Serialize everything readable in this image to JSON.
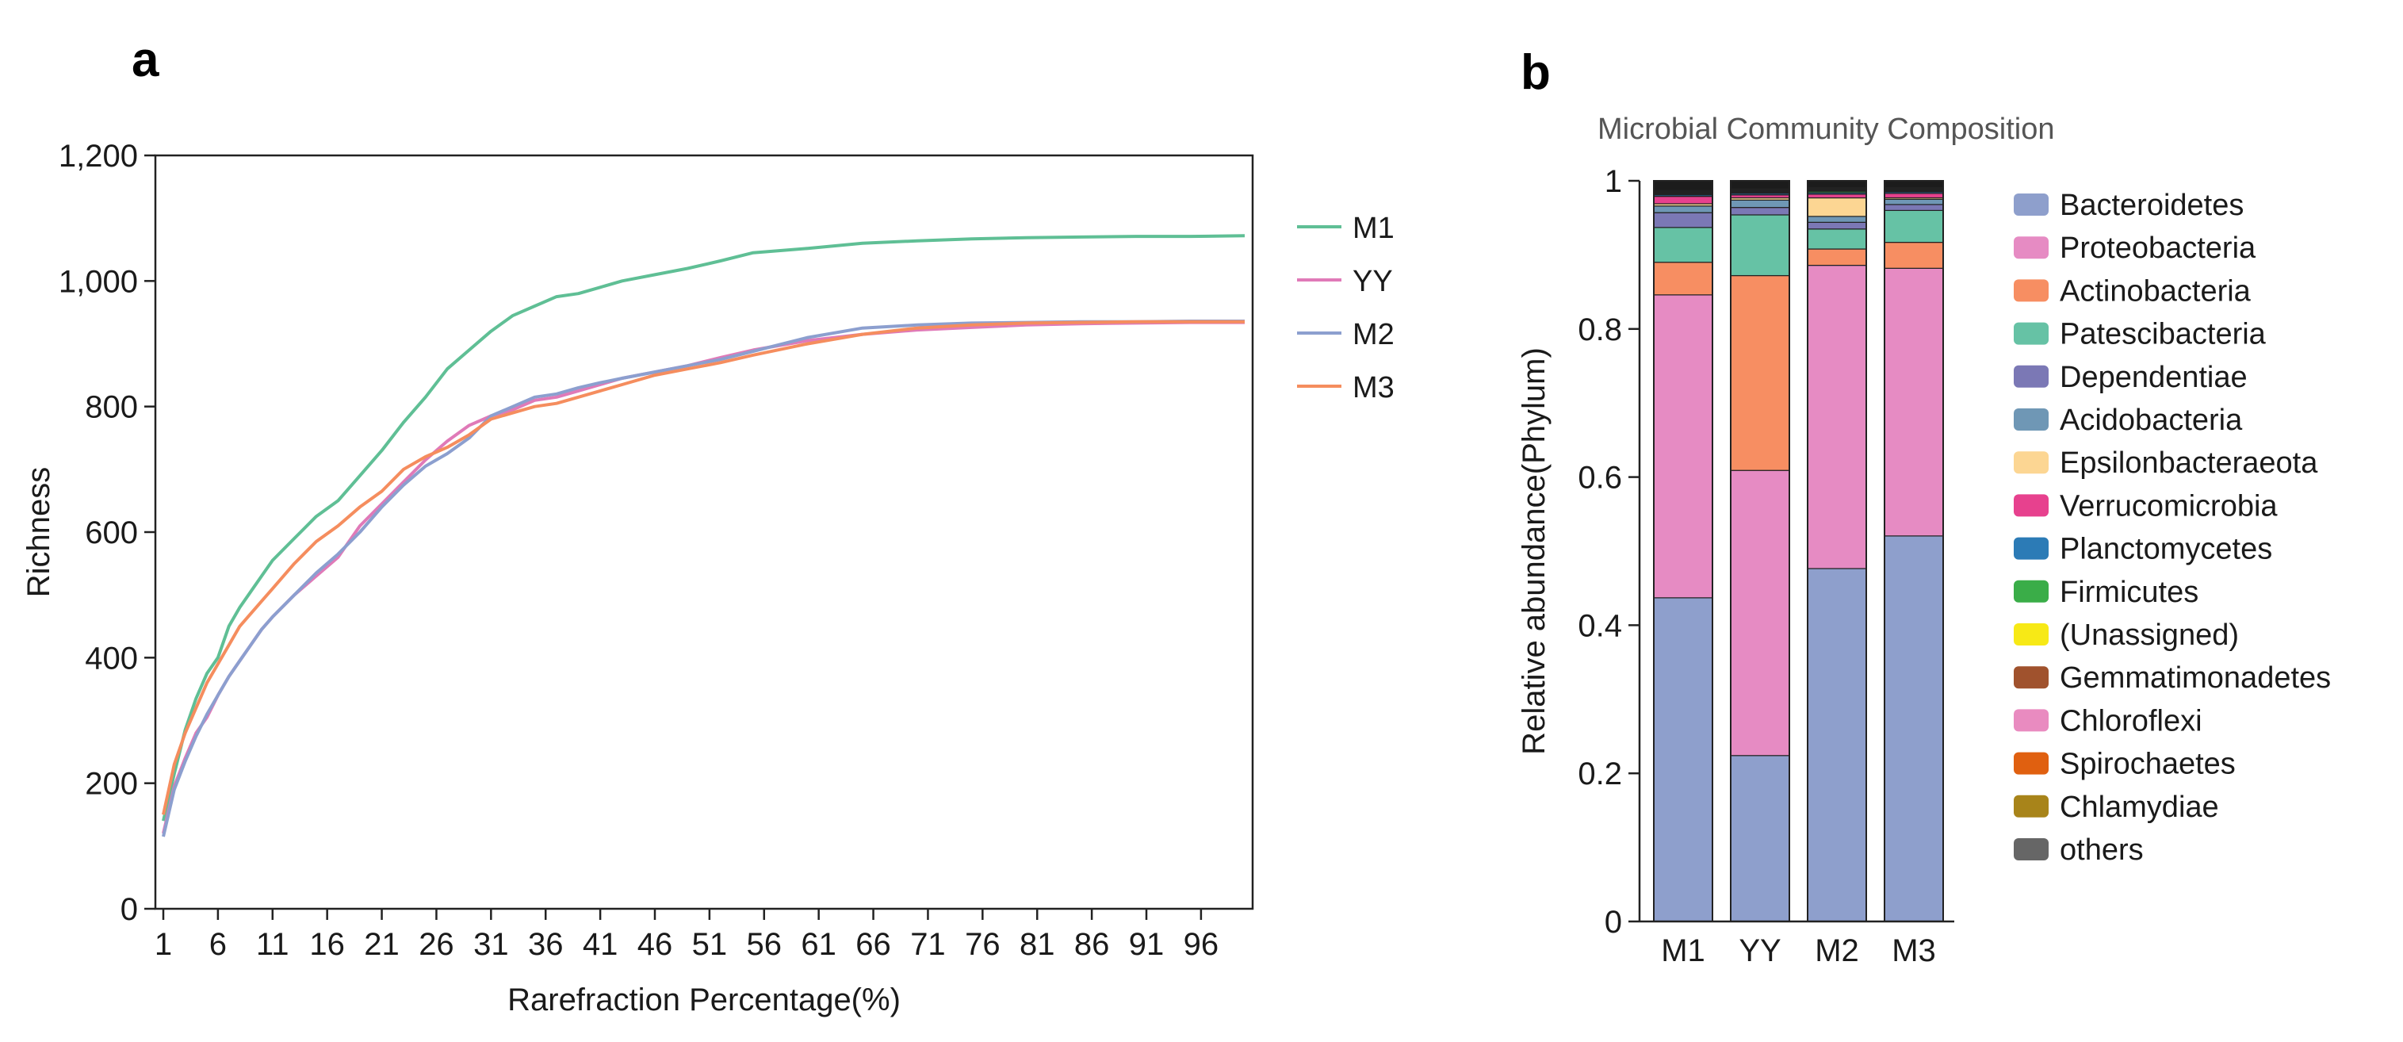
{
  "chart_data": [
    {
      "panel_label": "a",
      "type": "line",
      "title": "",
      "xlabel": "Rarefraction Percentage(%)",
      "ylabel": "Richness",
      "xlim": [
        1,
        100
      ],
      "ylim": [
        0,
        1200
      ],
      "xticks": [
        1,
        6,
        11,
        16,
        21,
        26,
        31,
        36,
        41,
        46,
        51,
        56,
        61,
        66,
        71,
        76,
        81,
        86,
        91,
        96
      ],
      "yticks": [
        0,
        200,
        400,
        600,
        800,
        1000,
        1200
      ],
      "ytick_labels": [
        "0",
        "200",
        "400",
        "600",
        "800",
        "1,000",
        "1,200"
      ],
      "legend_position": "right",
      "series": [
        {
          "name": "M1",
          "color": "#5fbf95",
          "x": [
            1,
            2,
            3,
            4,
            5,
            6,
            7,
            8,
            9,
            10,
            11,
            13,
            15,
            17,
            19,
            21,
            23,
            25,
            27,
            29,
            31,
            33,
            35,
            37,
            39,
            41,
            43,
            46,
            49,
            52,
            55,
            60,
            65,
            70,
            75,
            80,
            85,
            90,
            95,
            100
          ],
          "y": [
            140,
            215,
            285,
            335,
            375,
            400,
            450,
            480,
            505,
            530,
            555,
            590,
            625,
            650,
            690,
            730,
            775,
            815,
            860,
            890,
            920,
            945,
            960,
            975,
            980,
            990,
            1000,
            1010,
            1020,
            1032,
            1045,
            1052,
            1060,
            1064,
            1067,
            1069,
            1070,
            1071,
            1071,
            1072
          ]
        },
        {
          "name": "YY",
          "color": "#e07ab8",
          "x": [
            1,
            2,
            3,
            4,
            5,
            6,
            7,
            8,
            9,
            10,
            11,
            13,
            15,
            17,
            19,
            21,
            23,
            25,
            27,
            29,
            31,
            33,
            35,
            37,
            39,
            41,
            43,
            46,
            49,
            52,
            55,
            60,
            65,
            70,
            75,
            80,
            85,
            90,
            95,
            100
          ],
          "y": [
            120,
            195,
            240,
            280,
            305,
            340,
            370,
            395,
            420,
            445,
            465,
            500,
            530,
            560,
            610,
            645,
            680,
            715,
            745,
            770,
            785,
            795,
            810,
            815,
            825,
            835,
            845,
            855,
            865,
            878,
            890,
            905,
            915,
            922,
            926,
            930,
            932,
            933,
            934,
            934
          ]
        },
        {
          "name": "M2",
          "color": "#8c9fcf",
          "x": [
            1,
            2,
            3,
            4,
            5,
            6,
            7,
            8,
            9,
            10,
            11,
            13,
            15,
            17,
            19,
            21,
            23,
            25,
            27,
            29,
            31,
            33,
            35,
            37,
            39,
            41,
            43,
            46,
            49,
            52,
            55,
            60,
            65,
            70,
            75,
            80,
            85,
            90,
            95,
            100
          ],
          "y": [
            115,
            190,
            235,
            275,
            310,
            340,
            370,
            395,
            420,
            445,
            465,
            500,
            535,
            565,
            600,
            640,
            675,
            705,
            725,
            750,
            785,
            800,
            815,
            820,
            830,
            838,
            845,
            855,
            865,
            875,
            888,
            910,
            925,
            930,
            933,
            934,
            935,
            935,
            936,
            936
          ]
        },
        {
          "name": "M3",
          "color": "#f58d5e",
          "x": [
            1,
            2,
            3,
            4,
            5,
            6,
            7,
            8,
            9,
            10,
            11,
            13,
            15,
            17,
            19,
            21,
            23,
            25,
            27,
            29,
            31,
            33,
            35,
            37,
            39,
            41,
            43,
            46,
            49,
            52,
            55,
            60,
            65,
            70,
            75,
            80,
            85,
            90,
            95,
            100
          ],
          "y": [
            150,
            230,
            280,
            320,
            360,
            390,
            420,
            450,
            470,
            490,
            510,
            550,
            585,
            610,
            640,
            665,
            700,
            720,
            735,
            755,
            780,
            790,
            800,
            805,
            815,
            825,
            835,
            850,
            860,
            870,
            882,
            900,
            915,
            925,
            930,
            933,
            934,
            935,
            935,
            935
          ]
        }
      ]
    },
    {
      "panel_label": "b",
      "type": "bar",
      "stacked": true,
      "title": "Microbial Community Composition",
      "xlabel": "",
      "ylabel": "Relative abundance(Phylum)",
      "ylim": [
        0,
        1
      ],
      "yticks": [
        0,
        0.2,
        0.4,
        0.6,
        0.8,
        1
      ],
      "ytick_labels": [
        "0",
        "0.2",
        "0.4",
        "0.6",
        "0.8",
        "1"
      ],
      "categories": [
        "M1",
        "YY",
        "M2",
        "M3"
      ],
      "legend_position": "right",
      "series": [
        {
          "name": "Bacteroidetes",
          "color": "#8e9fcc",
          "values": [
            0.437,
            0.224,
            0.476,
            0.52
          ]
        },
        {
          "name": "Proteobacteria",
          "color": "#e68bc3",
          "values": [
            0.409,
            0.385,
            0.409,
            0.361
          ]
        },
        {
          "name": "Actinobacteria",
          "color": "#f78e62",
          "values": [
            0.044,
            0.263,
            0.022,
            0.035
          ]
        },
        {
          "name": "Patescibacteria",
          "color": "#66c2a5",
          "values": [
            0.047,
            0.082,
            0.027,
            0.043
          ]
        },
        {
          "name": "Dependentiae",
          "color": "#7b78b5",
          "values": [
            0.02,
            0.01,
            0.009,
            0.008
          ]
        },
        {
          "name": "Acidobacteria",
          "color": "#6f97b5",
          "values": [
            0.009,
            0.01,
            0.008,
            0.007
          ]
        },
        {
          "name": "Epsilonbacteraeota",
          "color": "#fcd693",
          "values": [
            0.003,
            0.003,
            0.025,
            0.002
          ]
        },
        {
          "name": "Verrucomicrobia",
          "color": "#e7418e",
          "values": [
            0.01,
            0.004,
            0.005,
            0.006
          ]
        },
        {
          "name": "Planctomycetes",
          "color": "#2c7bb6",
          "values": [
            0.002,
            0.002,
            0.002,
            0.002
          ]
        },
        {
          "name": "Firmicutes",
          "color": "#3aad48",
          "values": [
            0.001,
            0.001,
            0.002,
            0.001
          ]
        },
        {
          "name": "(Unassigned)",
          "color": "#f7e916",
          "values": [
            0.001,
            0.001,
            0.001,
            0.001
          ]
        },
        {
          "name": "Gemmatimonadetes",
          "color": "#a0522d",
          "values": [
            0.001,
            0.001,
            0.001,
            0.001
          ]
        },
        {
          "name": "Chloroflexi",
          "color": "#e98bc0",
          "values": [
            0.001,
            0.001,
            0.001,
            0.001
          ]
        },
        {
          "name": "Spirochaetes",
          "color": "#e06010",
          "values": [
            0.001,
            0.001,
            0.001,
            0.001
          ]
        },
        {
          "name": "Chlamydiae",
          "color": "#a8841a",
          "values": [
            0.001,
            0.001,
            0.001,
            0.001
          ]
        },
        {
          "name": "others",
          "color": "#1c1c1c",
          "values": [
            0.013,
            0.011,
            0.009,
            0.009
          ]
        }
      ],
      "legend_colors_override": {
        "others": "#666666"
      }
    }
  ]
}
